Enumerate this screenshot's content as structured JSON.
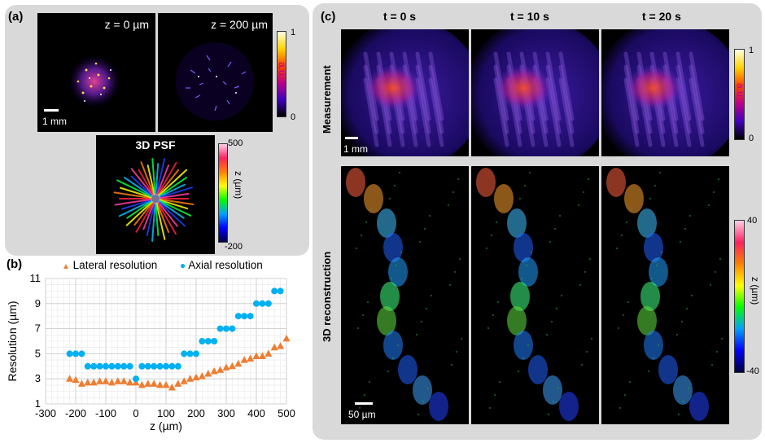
{
  "panel_a": {
    "label": "(a)",
    "tile1_text": "z = 0 µm",
    "tile2_text": "z = 200 µm",
    "scalebar": "1 mm",
    "colorbar": {
      "top": "1",
      "bottom": "0",
      "title": "a.u."
    },
    "psf_title": "3D PSF",
    "psf_colorbar": {
      "top": "500",
      "bottom": "-200",
      "title": "z (µm)"
    }
  },
  "panel_b": {
    "label": "(b)",
    "legend_lateral": "Lateral resolution",
    "legend_axial": "Axial resolution"
  },
  "panel_c": {
    "label": "(c)",
    "columns": [
      "t = 0 s",
      "t = 10 s",
      "t = 20 s"
    ],
    "row1_label": "Measurement",
    "row2_label": "3D reconstruction",
    "scalebar_top": "1 mm",
    "scalebar_bottom": "50 µm",
    "colorbar_top": {
      "top": "1",
      "bottom": "0",
      "title": "a.u."
    },
    "colorbar_bottom": {
      "top": "40",
      "bottom": "-40",
      "title": "z (µm)"
    }
  },
  "chart_data": {
    "type": "scatter",
    "xlabel": "z (µm)",
    "ylabel": "Resolution (µm)",
    "xlim": [
      -300,
      500
    ],
    "ylim": [
      1,
      11
    ],
    "xticks": [
      "-300",
      "-200",
      "-100",
      "0",
      "100",
      "200",
      "300",
      "400",
      "500"
    ],
    "yticks": [
      "1",
      "3",
      "5",
      "7",
      "9",
      "11"
    ],
    "grid": true,
    "legend": "top",
    "series": [
      {
        "name": "Lateral resolution",
        "color": "#ed7d31",
        "marker": "triangle",
        "x": [
          -220,
          -200,
          -180,
          -160,
          -140,
          -120,
          -100,
          -80,
          -60,
          -40,
          -20,
          0,
          20,
          40,
          60,
          80,
          100,
          120,
          140,
          160,
          180,
          200,
          220,
          240,
          260,
          280,
          300,
          320,
          340,
          360,
          380,
          400,
          420,
          440,
          460,
          480,
          500
        ],
        "y": [
          3.0,
          2.9,
          2.6,
          2.7,
          2.7,
          2.8,
          2.8,
          2.7,
          2.8,
          2.8,
          2.7,
          2.7,
          2.5,
          2.6,
          2.6,
          2.5,
          2.5,
          2.3,
          2.6,
          2.8,
          3.0,
          3.1,
          3.2,
          3.4,
          3.6,
          3.7,
          3.9,
          4.0,
          4.2,
          4.5,
          4.6,
          4.8,
          4.8,
          5.0,
          5.5,
          5.6,
          6.2
        ]
      },
      {
        "name": "Axial resolution",
        "color": "#00b0f0",
        "marker": "circle",
        "x": [
          -220,
          -200,
          -180,
          -160,
          -140,
          -120,
          -100,
          -80,
          -60,
          -40,
          -20,
          0,
          20,
          40,
          60,
          80,
          100,
          120,
          140,
          160,
          180,
          200,
          220,
          240,
          260,
          280,
          300,
          320,
          340,
          360,
          380,
          400,
          420,
          440,
          460,
          480
        ],
        "y": [
          5,
          5,
          5,
          4,
          4,
          4,
          4,
          4,
          4,
          4,
          4,
          3,
          4,
          4,
          4,
          4,
          4,
          4,
          4,
          5,
          5,
          5,
          6,
          6,
          6,
          7,
          7,
          7,
          8,
          8,
          8,
          9,
          9,
          9,
          10,
          10
        ]
      }
    ]
  }
}
